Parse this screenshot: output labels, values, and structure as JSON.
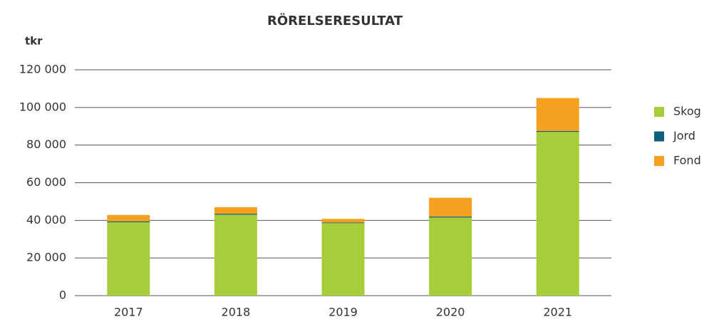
{
  "chart_data": {
    "type": "stacked_bar",
    "title": "RÖRELSERESULTAT",
    "y_label": "tkr",
    "categories": [
      "2017",
      "2018",
      "2019",
      "2020",
      "2021"
    ],
    "series": [
      {
        "name": "Skog",
        "color": "#a6cd3a",
        "values": [
          39000,
          43000,
          38500,
          41500,
          87000
        ]
      },
      {
        "name": "Jord",
        "color": "#0f5f7f",
        "values": [
          500,
          500,
          300,
          500,
          500
        ]
      },
      {
        "name": "Fond",
        "color": "#f6a01f",
        "values": [
          3400,
          3500,
          2000,
          10000,
          17500
        ]
      }
    ],
    "ylim": [
      0,
      120000
    ],
    "yticks": [
      0,
      {
        "value": 20000,
        "label": "20 000"
      },
      {
        "value": 40000,
        "label": "40 000"
      },
      {
        "value": 60000,
        "label": "60 000"
      },
      {
        "value": 80000,
        "label": "80 000"
      },
      {
        "value": 100000,
        "label": "100 000"
      },
      {
        "value": 120000,
        "label": "120 000"
      }
    ],
    "grid": true,
    "legend": "right"
  }
}
